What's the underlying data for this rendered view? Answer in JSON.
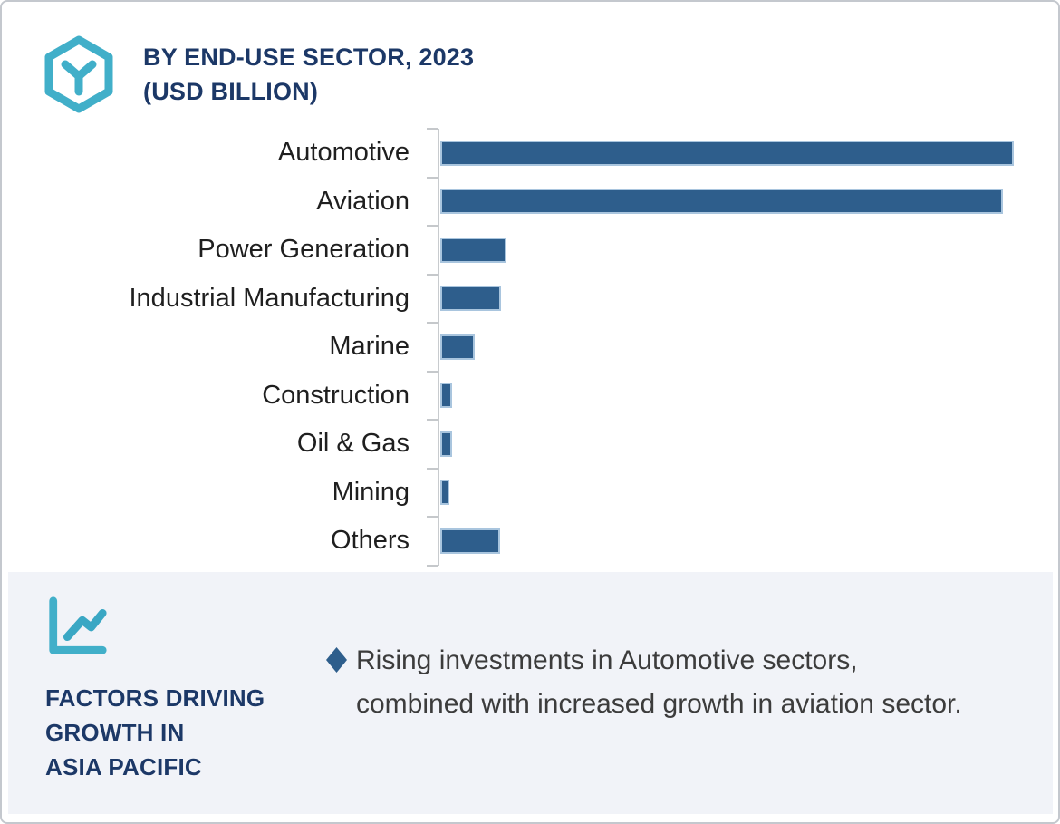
{
  "header": {
    "title_line1": "BY END-USE SECTOR, 2023",
    "title_line2": "(USD BILLION)",
    "title_color": "#1C3867",
    "accent_color": "#41AFC9"
  },
  "chart_data": {
    "type": "bar",
    "orientation": "horizontal",
    "title": "BY END-USE SECTOR, 2023 (USD BILLION)",
    "categories": [
      "Automotive",
      "Aviation",
      "Power Generation",
      "Industrial Manufacturing",
      "Marine",
      "Construction",
      "Oil & Gas",
      "Mining",
      "Others"
    ],
    "values": [
      100,
      98.1,
      11.5,
      10.6,
      6.0,
      2.1,
      2.0,
      1.6,
      10.5
    ],
    "value_note": "no numeric axis shown; values estimated relative to longest bar = 100",
    "xlim": [
      0,
      107.5
    ],
    "grid": false,
    "value_labels_shown": false,
    "legend": "none",
    "bar_color": "#2E5E8C",
    "bar_border_color": "#A9C5DE",
    "axis_color": "#C8CBCE",
    "label_color": "#1F1F1F"
  },
  "footer": {
    "heading_lines": [
      "FACTORS DRIVING",
      "GROWTH IN",
      "ASIA PACIFIC"
    ],
    "background": "#F1F3F8",
    "bullet": {
      "marker": "diamond",
      "marker_color": "#2E5E8C",
      "text": "Rising investments in Automotive sectors, combined with increased growth in aviation sector."
    }
  }
}
